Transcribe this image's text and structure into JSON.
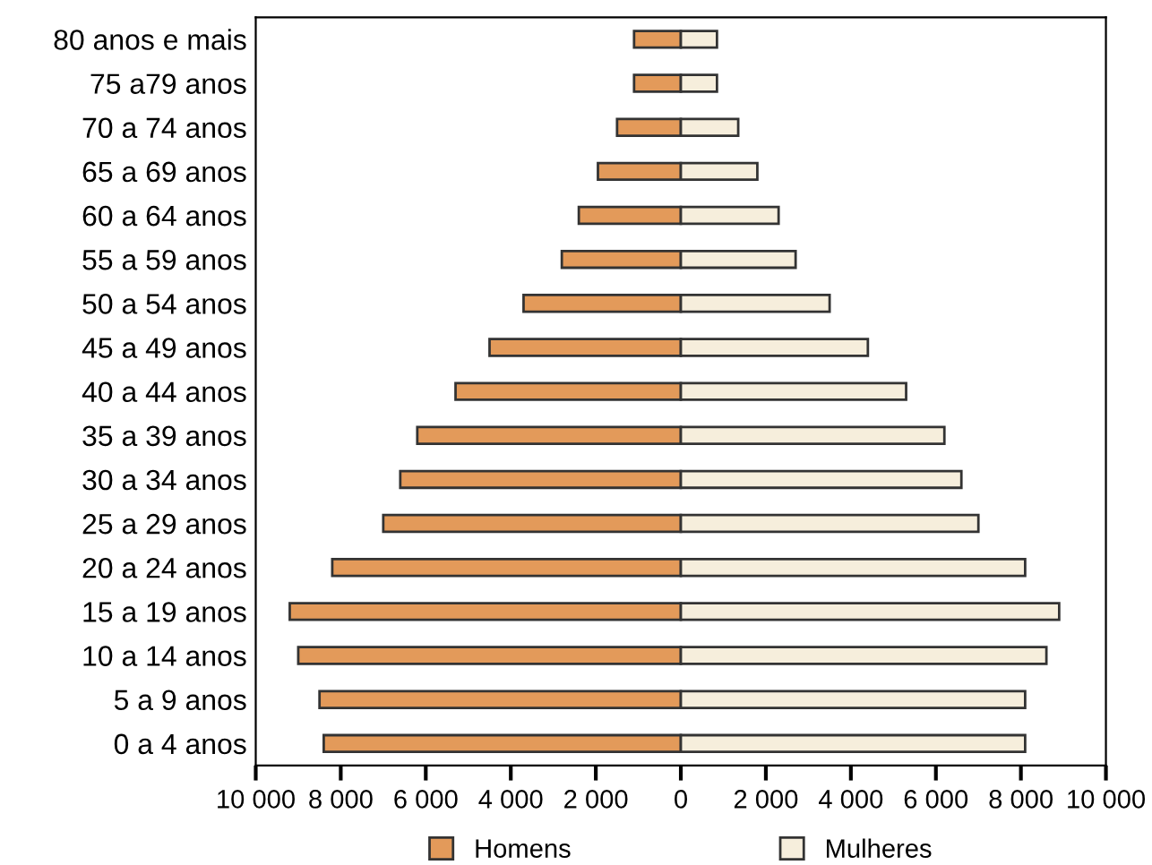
{
  "chart_data": {
    "type": "bar",
    "orientation": "horizontal",
    "categories": [
      "80 anos e mais",
      "75 a79 anos",
      "70 a 74 anos",
      "65 a 69 anos",
      "60 a 64 anos",
      "55 a 59 anos",
      "50 a 54 anos",
      "45 a 49 anos",
      "40 a 44 anos",
      "35 a 39 anos",
      "30 a 34 anos",
      "25 a 29 anos",
      "20 a 24 anos",
      "15 a 19 anos",
      "10 a 14 anos",
      "5 a 9 anos",
      "0 a 4 anos"
    ],
    "series": [
      {
        "name": "Homens",
        "color": "#e39a5a",
        "values": [
          -1100,
          -1100,
          -1500,
          -1950,
          -2400,
          -2800,
          -3700,
          -4500,
          -5300,
          -6200,
          -6600,
          -7000,
          -8200,
          -9200,
          -9000,
          -8500,
          -8400
        ]
      },
      {
        "name": "Mulheres",
        "color": "#f6eedc",
        "values": [
          850,
          850,
          1350,
          1800,
          2300,
          2700,
          3500,
          4400,
          5300,
          6200,
          6600,
          7000,
          8100,
          8900,
          8600,
          8100,
          8100
        ]
      }
    ],
    "xlim": [
      -10000,
      10000
    ],
    "xticks": [
      {
        "value": -10000,
        "label": "10 000"
      },
      {
        "value": -8000,
        "label": "8 000"
      },
      {
        "value": -6000,
        "label": "6 000"
      },
      {
        "value": -4000,
        "label": "4 000"
      },
      {
        "value": -2000,
        "label": "2 000"
      },
      0,
      {
        "value": 2000,
        "label": "2 000"
      },
      {
        "value": 4000,
        "label": "4 000"
      },
      {
        "value": 6000,
        "label": "6 000"
      },
      {
        "value": 8000,
        "label": "8 000"
      },
      {
        "value": 10000,
        "label": "10 000"
      }
    ],
    "stacked": true,
    "grid": false,
    "legend": "bottom"
  }
}
